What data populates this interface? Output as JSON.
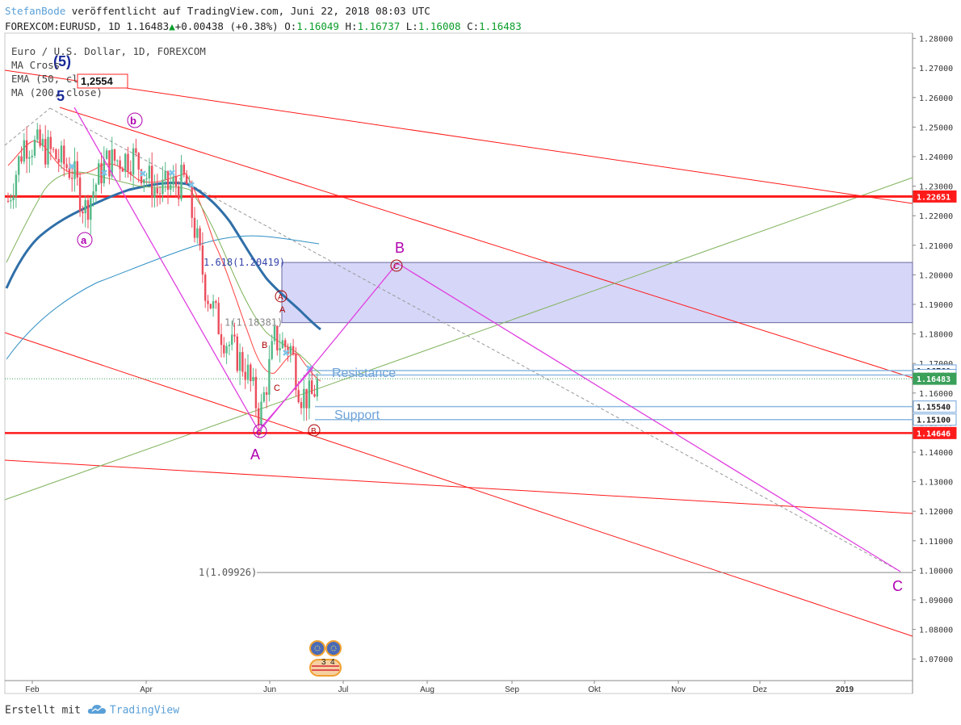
{
  "header": {
    "author": "StefanBode",
    "published": "veröffentlicht auf TradingView.com, Juni 22, 2018 08:03 UTC",
    "symbol": "FOREXCOM:EURUSD, 1D",
    "last": "1.16483",
    "change": "+0.00438 (+0.38%)",
    "o_label": "O:",
    "o": "1.16049",
    "h_label": "H:",
    "h": "1.16737",
    "l_label": "L:",
    "l": "1.16008",
    "c_label": "C:",
    "c": "1.16483"
  },
  "legend": {
    "l1": "Euro / U.S. Dollar, 1D, FOREXCOM",
    "l2": "MA Cross",
    "l3": "EMA (50, close)",
    "l4": "MA (200, close)",
    "boxed_value": "1,2554"
  },
  "footer": {
    "created_with": "Erstellt mit",
    "brand": "TradingView"
  },
  "colors": {
    "red": "#ff1a1a",
    "magenta": "#e040e0",
    "green": "#7fb35c",
    "blue_ema": "#2f6fa8",
    "purple_label": "#b000b0",
    "rect_fill": "#c8c8f5",
    "support": "#6fa3d8"
  },
  "chart_data": {
    "type": "candlestick",
    "symbol": "EURUSD",
    "ylim": [
      1.063,
      1.281
    ],
    "x_tick_labels": [
      "Feb",
      "Apr",
      "Jun",
      "Jul",
      "Aug",
      "Sep",
      "Okt",
      "Nov",
      "Dez",
      "2019"
    ],
    "y_ticks": [
      "1.07000",
      "1.08000",
      "1.09000",
      "1.10000",
      "1.11000",
      "1.12000",
      "1.13000",
      "1.14000",
      "1.15000",
      "1.16000",
      "1.17000",
      "1.18000",
      "1.19000",
      "1.20000",
      "1.21000",
      "1.22000",
      "1.23000",
      "1.24000",
      "1.25000",
      "1.26000",
      "1.27000",
      "1.28000"
    ],
    "price_badges": [
      {
        "value": "1.22651",
        "kind": "red"
      },
      {
        "value": "1.16760",
        "kind": "outline"
      },
      {
        "value": "1.16610",
        "kind": "outline"
      },
      {
        "value": "1.16483",
        "kind": "green"
      },
      {
        "value": "1.15540",
        "kind": "outline"
      },
      {
        "value": "1.15100",
        "kind": "outline"
      },
      {
        "value": "1.14646",
        "kind": "red"
      }
    ],
    "horizontal_levels": [
      1.22651,
      1.14646,
      1.1676,
      1.1661,
      1.1554,
      1.151
    ],
    "fib_levels": [
      {
        "label": "1.618(1.20419)",
        "value": 1.20419
      },
      {
        "label": "1(1.18381)",
        "value": 1.18381
      },
      {
        "label": "1(1.09926)",
        "value": 1.09926
      }
    ],
    "zone": {
      "top": 1.20419,
      "bottom": 1.18381
    },
    "text_annotations": [
      "Resistance",
      "Support"
    ],
    "wave_labels": [
      "(5)",
      "5",
      "a",
      "b",
      "c",
      "A",
      "B",
      "C",
      "A",
      "B",
      "C",
      "A",
      "B",
      "C",
      "A",
      "B"
    ],
    "moving_averages": [
      "EMA (50, close)",
      "MA (200, close)"
    ],
    "last_price": 1.16483
  }
}
